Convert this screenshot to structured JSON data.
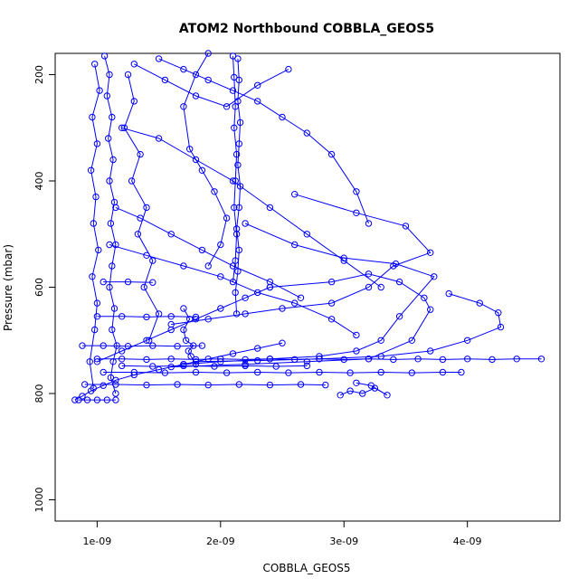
{
  "chart_data": {
    "type": "line",
    "title": "ATOM2 Northbound COBBLA_GEOS5",
    "xlabel": "COBBLA_GEOS5",
    "ylabel": "Pressure (mbar)",
    "xlim": [
      6.6e-10,
      4.75e-09
    ],
    "ylim": [
      1040,
      160
    ],
    "y_reversed": true,
    "x_ticks": [
      1e-09,
      2e-09,
      3e-09,
      4e-09
    ],
    "x_tick_labels": [
      "1e-09",
      "2e-09",
      "3e-09",
      "4e-09"
    ],
    "y_ticks": [
      200,
      400,
      600,
      800,
      1000
    ],
    "y_tick_labels": [
      "200",
      "400",
      "600",
      "800",
      "1000"
    ],
    "grid": false,
    "legend": "none",
    "color": "#0000ff",
    "marker": "open-circle",
    "series": [
      {
        "x": [
          1.06e-09,
          1.1e-09,
          1.08e-09,
          1.12e-09,
          1.09e-09,
          1.13e-09,
          1.1e-09,
          1.14e-09,
          1.11e-09,
          1.15e-09,
          1.12e-09,
          1.1e-09,
          1.14e-09,
          1.12e-09,
          1.16e-09,
          1.13e-09,
          1.11e-09,
          1.15e-09
        ],
        "y": [
          165,
          200,
          240,
          280,
          320,
          360,
          400,
          440,
          480,
          520,
          560,
          600,
          640,
          680,
          710,
          740,
          770,
          800
        ]
      },
      {
        "x": [
          2.14e-09,
          2.15e-09,
          2.14e-09,
          2.16e-09,
          2.15e-09,
          2.14e-09,
          2.16e-09,
          2.15e-09,
          2.13e-09,
          2.15e-09,
          2.14e-09,
          2.12e-09,
          2.13e-09
        ],
        "y": [
          170,
          210,
          250,
          290,
          330,
          370,
          410,
          450,
          490,
          530,
          570,
          610,
          650
        ]
      },
      {
        "x": [
          2.1e-09,
          2.11e-09,
          2.12e-09,
          2.11e-09,
          2.13e-09,
          2.12e-09,
          2.11e-09,
          2.13e-09,
          2.12e-09,
          2.1e-09
        ],
        "y": [
          165,
          205,
          260,
          300,
          350,
          400,
          450,
          500,
          550,
          590
        ]
      },
      {
        "x": [
          9.8e-10,
          1.02e-09,
          9.6e-10,
          1e-09,
          9.5e-10,
          9.9e-10,
          9.7e-10,
          1.01e-09,
          9.6e-10,
          1e-09,
          9.8e-10,
          9.4e-10,
          9.7e-10
        ],
        "y": [
          180,
          230,
          280,
          330,
          380,
          430,
          480,
          530,
          580,
          630,
          680,
          740,
          790
        ]
      },
      {
        "x": [
          1.25e-09,
          1.3e-09,
          1.22e-09,
          1.35e-09,
          1.28e-09,
          1.4e-09,
          1.33e-09,
          1.45e-09,
          1.38e-09,
          1.5e-09,
          1.42e-09
        ],
        "y": [
          200,
          250,
          300,
          350,
          400,
          450,
          500,
          550,
          600,
          650,
          700
        ]
      },
      {
        "x": [
          2.6e-09,
          3.1e-09,
          3.5e-09,
          3.7e-09,
          3.4e-09,
          3.2e-09,
          2.9e-09,
          2.5e-09,
          2.2e-09,
          1.9e-09,
          1.6e-09
        ],
        "y": [
          425,
          460,
          485,
          535,
          560,
          600,
          630,
          640,
          650,
          660,
          670
        ]
      },
      {
        "x": [
          2.2e-09,
          2.6e-09,
          3e-09,
          3.42e-09,
          3.73e-09,
          3.45e-09,
          3.3e-09,
          3.1e-09,
          2.8e-09,
          2.4e-09,
          2e-09,
          1.7e-09
        ],
        "y": [
          480,
          520,
          545,
          556,
          580,
          655,
          700,
          720,
          730,
          735,
          740,
          745
        ]
      },
      {
        "x": [
          2.4e-09,
          2.9e-09,
          3.2e-09,
          3.45e-09,
          3.65e-09,
          3.7e-09,
          3.55e-09,
          3.2e-09,
          2.7e-09,
          2.2e-09,
          1.6e-09
        ],
        "y": [
          600,
          590,
          575,
          590,
          620,
          642,
          700,
          735,
          740,
          745,
          750
        ]
      },
      {
        "x": [
          3.85e-09,
          4.1e-09,
          4.25e-09,
          4.27e-09,
          4e-09,
          3.7e-09,
          3.3e-09,
          2.8e-09,
          2.3e-09,
          1.8e-09
        ],
        "y": [
          612,
          630,
          648,
          675,
          700,
          720,
          730,
          735,
          738,
          740
        ]
      },
      {
        "x": [
          1e-09,
          1.2e-09,
          1.4e-09,
          1.6e-09,
          1.8e-09,
          2e-09,
          2.2e-09,
          2.4e-09,
          2.6e-09,
          2.8e-09,
          3e-09,
          3.2e-09,
          3.4e-09,
          3.6e-09,
          3.8e-09,
          4e-09,
          4.2e-09,
          4.4e-09,
          4.6e-09
        ],
        "y": [
          735,
          735,
          736,
          735,
          736,
          735,
          736,
          735,
          736,
          735,
          736,
          735,
          736,
          735,
          736,
          735,
          736,
          735,
          735
        ]
      },
      {
        "x": [
          1.05e-09,
          1.3e-09,
          1.55e-09,
          1.8e-09,
          2.05e-09,
          2.3e-09,
          2.55e-09,
          2.8e-09,
          3.05e-09,
          3.3e-09,
          3.55e-09,
          3.8e-09,
          3.95e-09
        ],
        "y": [
          760,
          760,
          761,
          760,
          761,
          760,
          761,
          760,
          761,
          760,
          761,
          760,
          760
        ]
      },
      {
        "x": [
          9e-10,
          1.15e-09,
          1.4e-09,
          1.65e-09,
          1.9e-09,
          2.15e-09,
          2.4e-09,
          2.65e-09,
          2.85e-09
        ],
        "y": [
          783,
          783,
          784,
          783,
          784,
          783,
          784,
          783,
          784
        ]
      },
      {
        "x": [
          1.2e-09,
          1.45e-09,
          1.7e-09,
          1.95e-09,
          2.2e-09,
          2.45e-09,
          2.7e-09
        ],
        "y": [
          748,
          749,
          748,
          749,
          748,
          749,
          748
        ]
      },
      {
        "x": [
          8.8e-10,
          1.05e-09,
          1.25e-09,
          1.45e-09,
          1.65e-09,
          1.85e-09
        ],
        "y": [
          710,
          710,
          711,
          710,
          711,
          710
        ]
      },
      {
        "x": [
          1e-09,
          1.2e-09,
          1.4e-09,
          1.6e-09,
          1.8e-09
        ],
        "y": [
          655,
          655,
          656,
          655,
          656
        ]
      },
      {
        "x": [
          1.05e-09,
          1.25e-09,
          1.45e-09
        ],
        "y": [
          590,
          590,
          591
        ]
      },
      {
        "x": [
          2.97e-09,
          3.05e-09,
          3.15e-09,
          3.25e-09,
          3.35e-09,
          3.22e-09,
          3.1e-09
        ],
        "y": [
          803,
          795,
          800,
          790,
          803,
          785,
          780
        ]
      },
      {
        "x": [
          8.2e-10,
          8.8e-10,
          9.5e-10,
          1.05e-09,
          1.15e-09,
          1.3e-09,
          1.5e-09,
          1.7e-09,
          1.9e-09,
          2.1e-09,
          2.3e-09,
          2.5e-09
        ],
        "y": [
          812,
          805,
          795,
          785,
          775,
          765,
          755,
          745,
          735,
          725,
          715,
          705
        ]
      },
      {
        "x": [
          8.5e-10,
          9.2e-10,
          1e-09,
          1.08e-09,
          1.15e-09
        ],
        "y": [
          812,
          812,
          812,
          812,
          812
        ]
      },
      {
        "x": [
          1.5e-09,
          1.7e-09,
          1.9e-09,
          2.1e-09,
          2.3e-09,
          2.5e-09,
          2.7e-09,
          2.9e-09,
          3.1e-09,
          3.2e-09
        ],
        "y": [
          170,
          190,
          210,
          230,
          250,
          280,
          310,
          350,
          420,
          480
        ]
      },
      {
        "x": [
          1.2e-09,
          1.5e-09,
          1.8e-09,
          2.1e-09,
          2.4e-09,
          2.7e-09,
          3e-09,
          3.3e-09
        ],
        "y": [
          300,
          320,
          360,
          400,
          450,
          500,
          550,
          600
        ]
      },
      {
        "x": [
          1.9e-09,
          1.8e-09,
          1.7e-09,
          1.75e-09,
          1.85e-09,
          1.95e-09,
          2.05e-09,
          2e-09,
          1.9e-09
        ],
        "y": [
          160,
          200,
          260,
          340,
          380,
          420,
          470,
          520,
          560
        ]
      },
      {
        "x": [
          1.3e-09,
          1.55e-09,
          1.8e-09,
          2.05e-09,
          2.3e-09,
          2.55e-09
        ],
        "y": [
          180,
          210,
          240,
          260,
          220,
          190
        ]
      },
      {
        "x": [
          1.15e-09,
          1.35e-09,
          1.6e-09,
          1.85e-09,
          2.1e-09,
          2.4e-09,
          2.65e-09
        ],
        "y": [
          450,
          470,
          500,
          530,
          560,
          590,
          620
        ]
      },
      {
        "x": [
          1.1e-09,
          1.4e-09,
          1.7e-09,
          2e-09,
          2.3e-09,
          2.6e-09,
          2.9e-09,
          3.1e-09
        ],
        "y": [
          520,
          540,
          560,
          580,
          610,
          630,
          660,
          690
        ]
      },
      {
        "x": [
          1e-09,
          1.2e-09,
          1.4e-09,
          1.6e-09,
          1.8e-09,
          2e-09,
          2.2e-09,
          2.4e-09
        ],
        "y": [
          740,
          720,
          700,
          680,
          660,
          640,
          620,
          600
        ]
      },
      {
        "x": [
          1.7e-09,
          1.75e-09,
          1.7e-09,
          1.72e-09,
          1.78e-09,
          1.74e-09,
          1.76e-09,
          1.8e-09
        ],
        "y": [
          640,
          660,
          680,
          700,
          710,
          720,
          730,
          745
        ]
      }
    ]
  }
}
